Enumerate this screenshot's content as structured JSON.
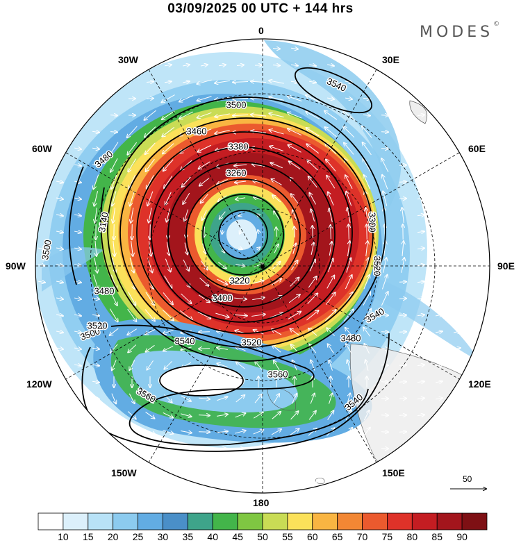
{
  "title": "03/09/2025  00 UTC  + 144 hrs",
  "brand": {
    "text": "MODES",
    "mark": "©"
  },
  "longitude_labels": [
    {
      "key": "lon0",
      "text": "0"
    },
    {
      "key": "lon30e",
      "text": "30E"
    },
    {
      "key": "lon60e",
      "text": "60E"
    },
    {
      "key": "lon90e",
      "text": "90E"
    },
    {
      "key": "lon120e",
      "text": "120E"
    },
    {
      "key": "lon150e",
      "text": "150E"
    },
    {
      "key": "lon180",
      "text": "180"
    },
    {
      "key": "lon150w",
      "text": "150W"
    },
    {
      "key": "lon120w",
      "text": "120W"
    },
    {
      "key": "lon90w",
      "text": "90W"
    },
    {
      "key": "lon60w",
      "text": "60W"
    },
    {
      "key": "lon30w",
      "text": "30W"
    }
  ],
  "contour_labels": [
    "3540",
    "3500",
    "3460",
    "3480",
    "3380",
    "3260",
    "3140",
    "3300",
    "3520",
    "3500",
    "3480",
    "3500",
    "3520",
    "3220",
    "3400",
    "3480",
    "3520",
    "3540",
    "3540",
    "3560",
    "3560",
    "3540"
  ],
  "wind_reference": {
    "value": "50"
  },
  "colorbar": {
    "ticks": [
      "10",
      "15",
      "20",
      "25",
      "30",
      "35",
      "40",
      "45",
      "50",
      "55",
      "60",
      "65",
      "70",
      "75",
      "80",
      "85",
      "90"
    ],
    "colors": [
      "#ffffff",
      "#dcf0fb",
      "#b8e2f7",
      "#8ccbef",
      "#62ace3",
      "#4a8fc8",
      "#3ea48a",
      "#43b54a",
      "#7fc742",
      "#c9dc55",
      "#fbe15a",
      "#f9b542",
      "#f28734",
      "#eb5a2e",
      "#de3229",
      "#c41d22",
      "#a3151c",
      "#7e1014"
    ]
  },
  "colors": {
    "land": "#eeeeee",
    "coast": "#555555"
  }
}
